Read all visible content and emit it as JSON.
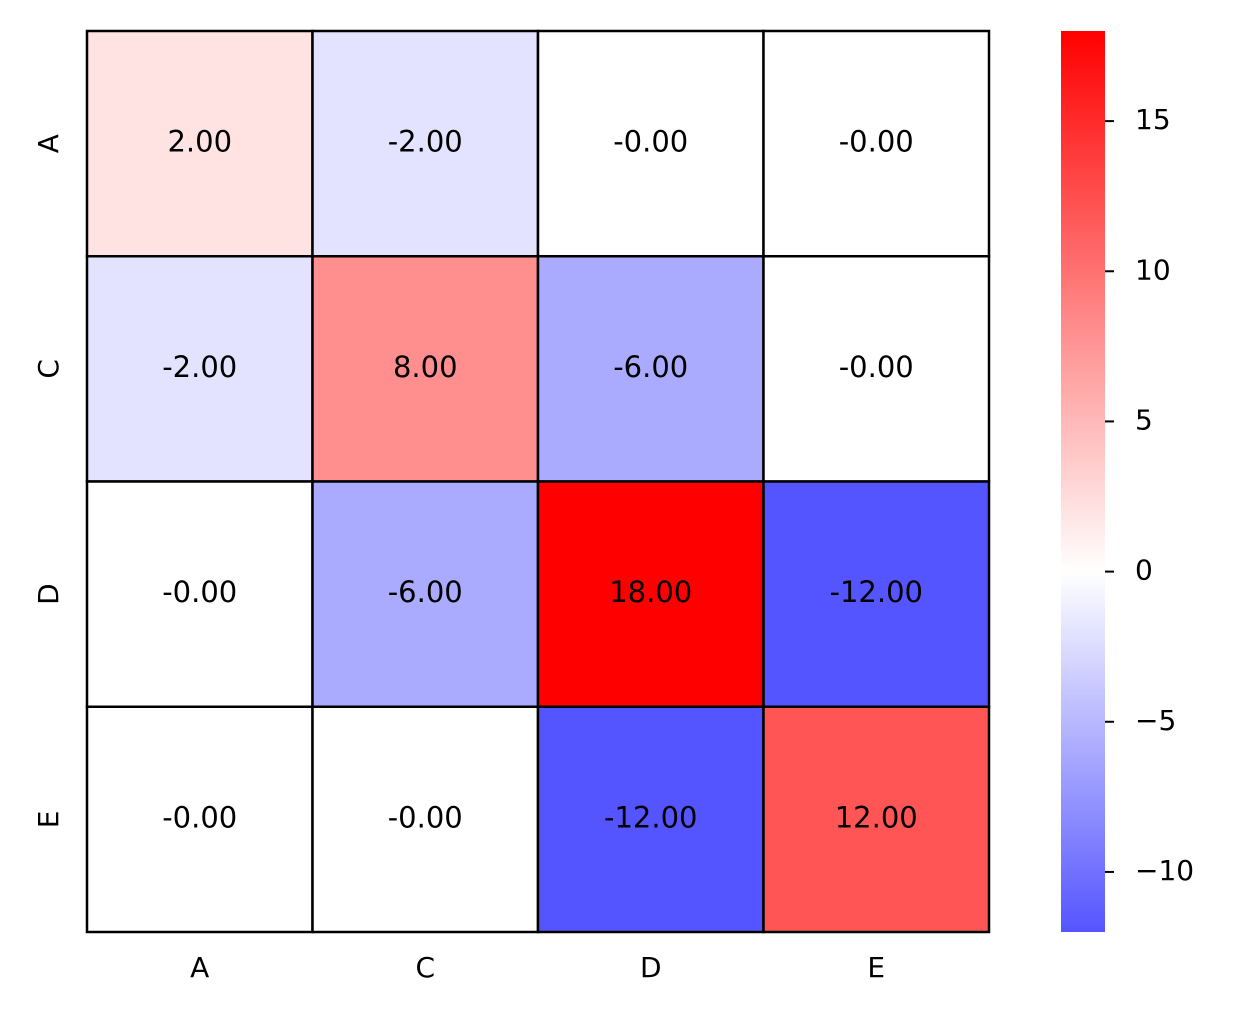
{
  "chart_data": {
    "type": "heatmap",
    "x_categories": [
      "A",
      "C",
      "D",
      "E"
    ],
    "y_categories": [
      "A",
      "C",
      "D",
      "E"
    ],
    "values": [
      [
        2,
        -2,
        0,
        0
      ],
      [
        -2,
        8,
        -6,
        0
      ],
      [
        0,
        -6,
        18,
        -12
      ],
      [
        0,
        0,
        -12,
        12
      ]
    ],
    "value_labels": [
      [
        "2.00",
        "-2.00",
        "-0.00",
        "-0.00"
      ],
      [
        "-2.00",
        "8.00",
        "-6.00",
        "-0.00"
      ],
      [
        "-0.00",
        "-6.00",
        "18.00",
        "-12.00"
      ],
      [
        "-0.00",
        "-0.00",
        "-12.00",
        "12.00"
      ]
    ],
    "colormap": [
      "#0000ff",
      "#ffffff",
      "#ff0000"
    ],
    "clim": [
      -12,
      18
    ],
    "cticks": [
      {
        "value": -10,
        "label": "−10"
      },
      {
        "value": -5,
        "label": "−5"
      },
      0,
      5,
      10,
      15
    ]
  }
}
